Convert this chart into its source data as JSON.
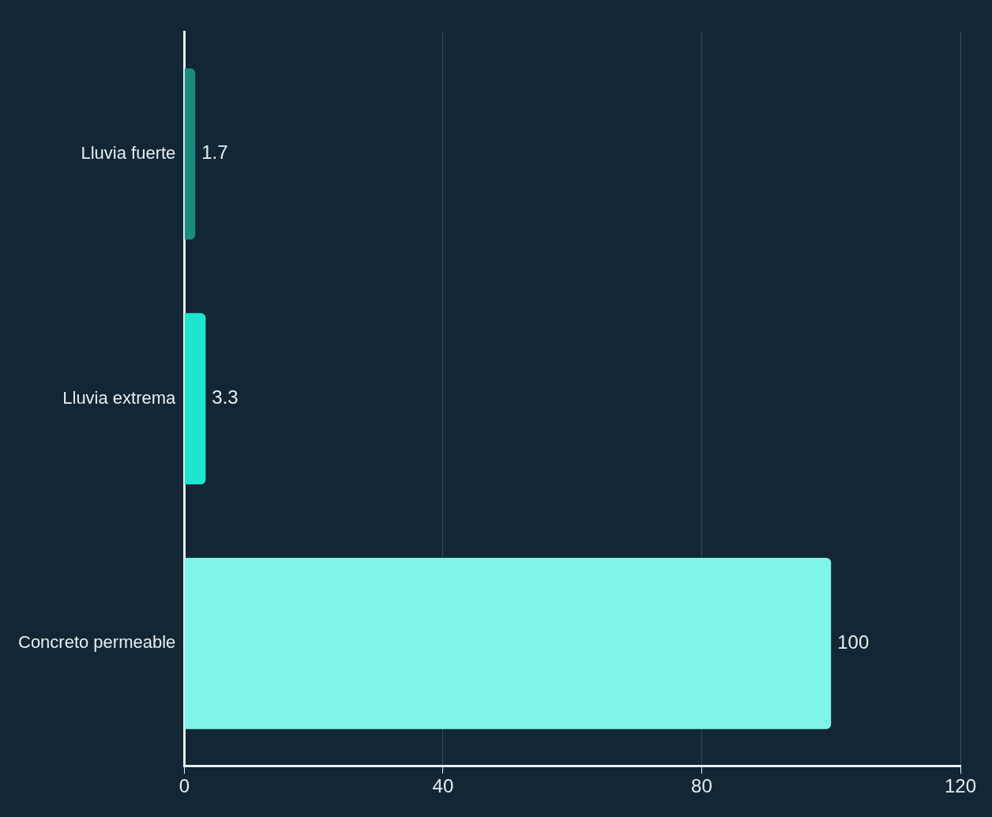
{
  "chart_data": {
    "type": "bar",
    "orientation": "horizontal",
    "categories": [
      "Lluvia fuerte",
      "Lluvia extrema",
      "Concreto permeable"
    ],
    "values": [
      1.7,
      3.3,
      100
    ],
    "colors": [
      "#1b8c7e",
      "#1de6cf",
      "#7ff5ea"
    ],
    "xlim": [
      0,
      120
    ],
    "xticks": [
      0,
      40,
      80,
      120
    ],
    "grid": "x",
    "data_labels": true,
    "legend": false
  }
}
